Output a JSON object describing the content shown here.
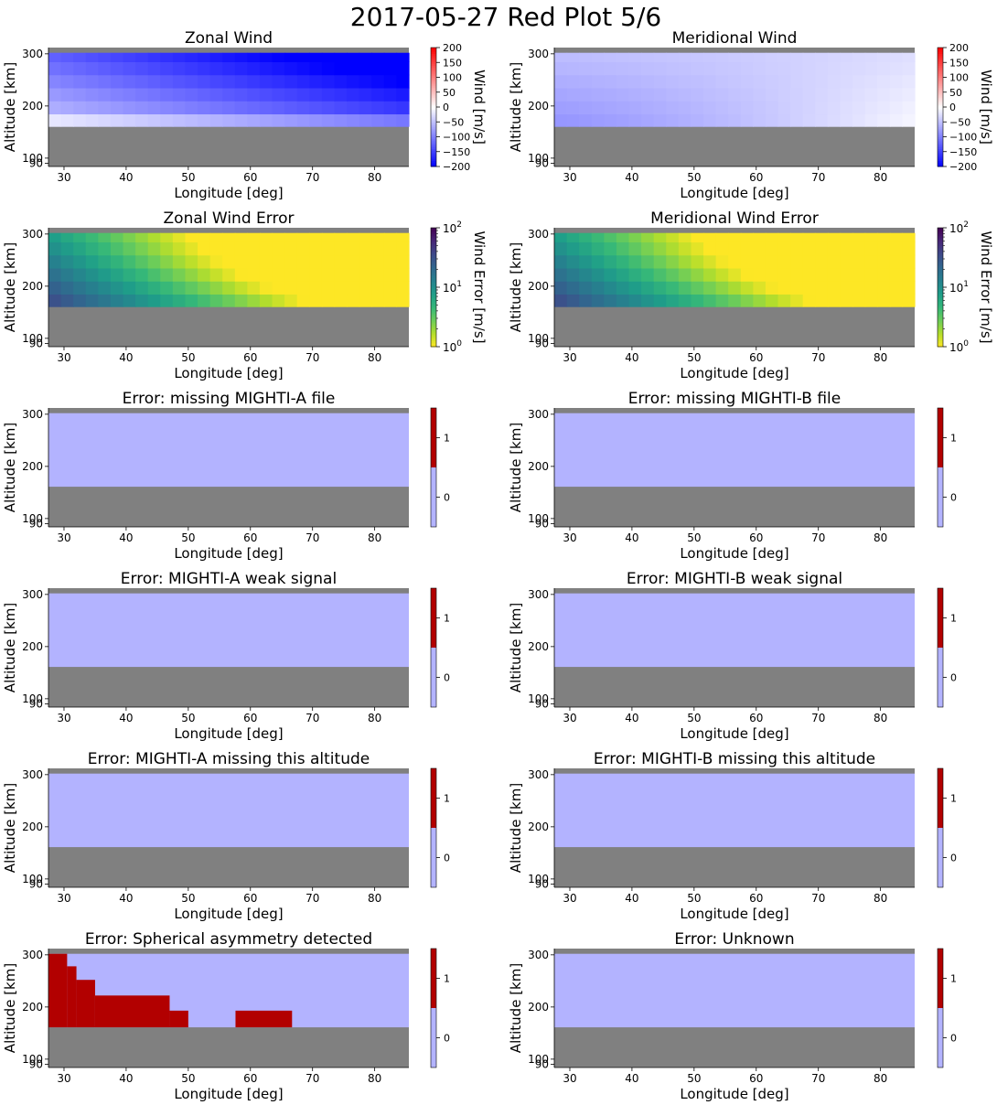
{
  "suptitle": "2017-05-27 Red Plot 5/6",
  "panel_colors": {
    "no_data": "#808080",
    "flag_off": "#b3b3ff",
    "flag_on": "#b20000"
  },
  "chart_data": [
    {
      "type": "heatmap",
      "title": "Zonal Wind",
      "xlabel": "Longitude [deg]",
      "ylabel": "Altitude [km]",
      "xlim": [
        27.5,
        85.5
      ],
      "ylim": [
        84,
        312
      ],
      "xticks": [
        30,
        40,
        50,
        60,
        70,
        80
      ],
      "yticks": [
        90,
        100,
        200,
        300
      ],
      "data_alt_range": [
        161,
        302
      ],
      "colormap": "bwr",
      "colorbar": {
        "label": "Wind [m/s]",
        "scale": "linear",
        "ticks": [
          -200,
          -150,
          -100,
          -50,
          0,
          50,
          100,
          150,
          200
        ],
        "range": [
          -200,
          200
        ]
      },
      "value_model": {
        "field": "zonal_wind",
        "lon_range": [
          27.5,
          85.5
        ],
        "min_value": -200,
        "max_value": -40
      }
    },
    {
      "type": "heatmap",
      "title": "Meridional Wind",
      "xlabel": "Longitude [deg]",
      "ylabel": "Altitude [km]",
      "xlim": [
        27.5,
        85.5
      ],
      "ylim": [
        84,
        312
      ],
      "xticks": [
        30,
        40,
        50,
        60,
        70,
        80
      ],
      "yticks": [
        90,
        100,
        200,
        300
      ],
      "data_alt_range": [
        161,
        302
      ],
      "colormap": "bwr",
      "colorbar": {
        "label": "Wind [m/s]",
        "scale": "linear",
        "ticks": [
          -200,
          -150,
          -100,
          -50,
          0,
          50,
          100,
          150,
          200
        ],
        "range": [
          -200,
          200
        ]
      },
      "value_model": {
        "field": "meridional_wind",
        "lon_range": [
          27.5,
          85.5
        ],
        "min_value": -100,
        "max_value": 0
      }
    },
    {
      "type": "heatmap",
      "title": "Zonal Wind Error",
      "xlabel": "Longitude [deg]",
      "ylabel": "Altitude [km]",
      "xlim": [
        27.5,
        85.5
      ],
      "ylim": [
        84,
        312
      ],
      "xticks": [
        30,
        40,
        50,
        60,
        70,
        80
      ],
      "yticks": [
        90,
        100,
        200,
        300
      ],
      "data_alt_range": [
        161,
        302
      ],
      "colormap": "viridis_r",
      "colorbar": {
        "label": "Wind Error [m/s]",
        "scale": "log",
        "ticks": [
          "10^0",
          "10^1",
          "10^2"
        ],
        "range": [
          1,
          100
        ]
      },
      "value_model": {
        "field": "wind_error",
        "lon_range": [
          27.5,
          85.5
        ],
        "min_value": 1,
        "max_value": 40
      }
    },
    {
      "type": "heatmap",
      "title": "Meridional Wind Error",
      "xlabel": "Longitude [deg]",
      "ylabel": "Altitude [km]",
      "xlim": [
        27.5,
        85.5
      ],
      "ylim": [
        84,
        312
      ],
      "xticks": [
        30,
        40,
        50,
        60,
        70,
        80
      ],
      "yticks": [
        90,
        100,
        200,
        300
      ],
      "data_alt_range": [
        161,
        302
      ],
      "colormap": "viridis_r",
      "colorbar": {
        "label": "Wind Error [m/s]",
        "scale": "log",
        "ticks": [
          "10^0",
          "10^1",
          "10^2"
        ],
        "range": [
          1,
          100
        ]
      },
      "value_model": {
        "field": "wind_error",
        "lon_range": [
          27.5,
          85.5
        ],
        "min_value": 1,
        "max_value": 40
      }
    },
    {
      "type": "heatmap",
      "title": "Error: missing MIGHTI-A file",
      "xlabel": "Longitude [deg]",
      "ylabel": "Altitude [km]",
      "xlim": [
        27.5,
        85.5
      ],
      "ylim": [
        84,
        312
      ],
      "xticks": [
        30,
        40,
        50,
        60,
        70,
        80
      ],
      "yticks": [
        90,
        100,
        200,
        300
      ],
      "data_alt_range": [
        161,
        302
      ],
      "colormap": "flag",
      "colorbar": {
        "label": "",
        "scale": "discrete",
        "ticks": [
          0,
          1
        ],
        "range": [
          -0.5,
          1.5
        ]
      },
      "flag_regions": []
    },
    {
      "type": "heatmap",
      "title": "Error: missing MIGHTI-B file",
      "xlabel": "Longitude [deg]",
      "ylabel": "Altitude [km]",
      "xlim": [
        27.5,
        85.5
      ],
      "ylim": [
        84,
        312
      ],
      "xticks": [
        30,
        40,
        50,
        60,
        70,
        80
      ],
      "yticks": [
        90,
        100,
        200,
        300
      ],
      "data_alt_range": [
        161,
        302
      ],
      "colormap": "flag",
      "colorbar": {
        "label": "",
        "scale": "discrete",
        "ticks": [
          0,
          1
        ],
        "range": [
          -0.5,
          1.5
        ]
      },
      "flag_regions": []
    },
    {
      "type": "heatmap",
      "title": "Error: MIGHTI-A weak signal",
      "xlabel": "Longitude [deg]",
      "ylabel": "Altitude [km]",
      "xlim": [
        27.5,
        85.5
      ],
      "ylim": [
        84,
        312
      ],
      "xticks": [
        30,
        40,
        50,
        60,
        70,
        80
      ],
      "yticks": [
        90,
        100,
        200,
        300
      ],
      "data_alt_range": [
        161,
        302
      ],
      "colormap": "flag",
      "colorbar": {
        "label": "",
        "scale": "discrete",
        "ticks": [
          0,
          1
        ],
        "range": [
          -0.5,
          1.5
        ]
      },
      "flag_regions": []
    },
    {
      "type": "heatmap",
      "title": "Error: MIGHTI-B weak signal",
      "xlabel": "Longitude [deg]",
      "ylabel": "Altitude [km]",
      "xlim": [
        27.5,
        85.5
      ],
      "ylim": [
        84,
        312
      ],
      "xticks": [
        30,
        40,
        50,
        60,
        70,
        80
      ],
      "yticks": [
        90,
        100,
        200,
        300
      ],
      "data_alt_range": [
        161,
        302
      ],
      "colormap": "flag",
      "colorbar": {
        "label": "",
        "scale": "discrete",
        "ticks": [
          0,
          1
        ],
        "range": [
          -0.5,
          1.5
        ]
      },
      "flag_regions": []
    },
    {
      "type": "heatmap",
      "title": "Error: MIGHTI-A missing this altitude",
      "xlabel": "Longitude [deg]",
      "ylabel": "Altitude [km]",
      "xlim": [
        27.5,
        85.5
      ],
      "ylim": [
        84,
        312
      ],
      "xticks": [
        30,
        40,
        50,
        60,
        70,
        80
      ],
      "yticks": [
        90,
        100,
        200,
        300
      ],
      "data_alt_range": [
        161,
        302
      ],
      "colormap": "flag",
      "colorbar": {
        "label": "",
        "scale": "discrete",
        "ticks": [
          0,
          1
        ],
        "range": [
          -0.5,
          1.5
        ]
      },
      "flag_regions": []
    },
    {
      "type": "heatmap",
      "title": "Error: MIGHTI-B missing this altitude",
      "xlabel": "Longitude [deg]",
      "ylabel": "Altitude [km]",
      "xlim": [
        27.5,
        85.5
      ],
      "ylim": [
        84,
        312
      ],
      "xticks": [
        30,
        40,
        50,
        60,
        70,
        80
      ],
      "yticks": [
        90,
        100,
        200,
        300
      ],
      "data_alt_range": [
        161,
        302
      ],
      "colormap": "flag",
      "colorbar": {
        "label": "",
        "scale": "discrete",
        "ticks": [
          0,
          1
        ],
        "range": [
          -0.5,
          1.5
        ]
      },
      "flag_regions": []
    },
    {
      "type": "heatmap",
      "title": "Error: Spherical asymmetry detected",
      "xlabel": "Longitude [deg]",
      "ylabel": "Altitude [km]",
      "xlim": [
        27.5,
        85.5
      ],
      "ylim": [
        84,
        312
      ],
      "xticks": [
        30,
        40,
        50,
        60,
        70,
        80
      ],
      "yticks": [
        90,
        100,
        200,
        300
      ],
      "data_alt_range": [
        161,
        302
      ],
      "colormap": "flag",
      "colorbar": {
        "label": "",
        "scale": "discrete",
        "ticks": [
          0,
          1
        ],
        "range": [
          -0.5,
          1.5
        ]
      },
      "flag_regions": [
        {
          "lon": [
            27.5,
            30.5
          ],
          "alt": [
            161,
            302
          ]
        },
        {
          "lon": [
            30.5,
            32.0
          ],
          "alt": [
            161,
            278
          ]
        },
        {
          "lon": [
            32.0,
            35.0
          ],
          "alt": [
            161,
            252
          ]
        },
        {
          "lon": [
            35.0,
            47.0
          ],
          "alt": [
            161,
            222
          ]
        },
        {
          "lon": [
            47.0,
            50.0
          ],
          "alt": [
            161,
            193
          ]
        },
        {
          "lon": [
            57.6,
            66.7
          ],
          "alt": [
            161,
            193
          ]
        }
      ]
    },
    {
      "type": "heatmap",
      "title": "Error: Unknown",
      "xlabel": "Longitude [deg]",
      "ylabel": "Altitude [km]",
      "xlim": [
        27.5,
        85.5
      ],
      "ylim": [
        84,
        312
      ],
      "xticks": [
        30,
        40,
        50,
        60,
        70,
        80
      ],
      "yticks": [
        90,
        100,
        200,
        300
      ],
      "data_alt_range": [
        161,
        302
      ],
      "colormap": "flag",
      "colorbar": {
        "label": "",
        "scale": "discrete",
        "ticks": [
          0,
          1
        ],
        "range": [
          -0.5,
          1.5
        ]
      },
      "flag_regions": []
    }
  ]
}
